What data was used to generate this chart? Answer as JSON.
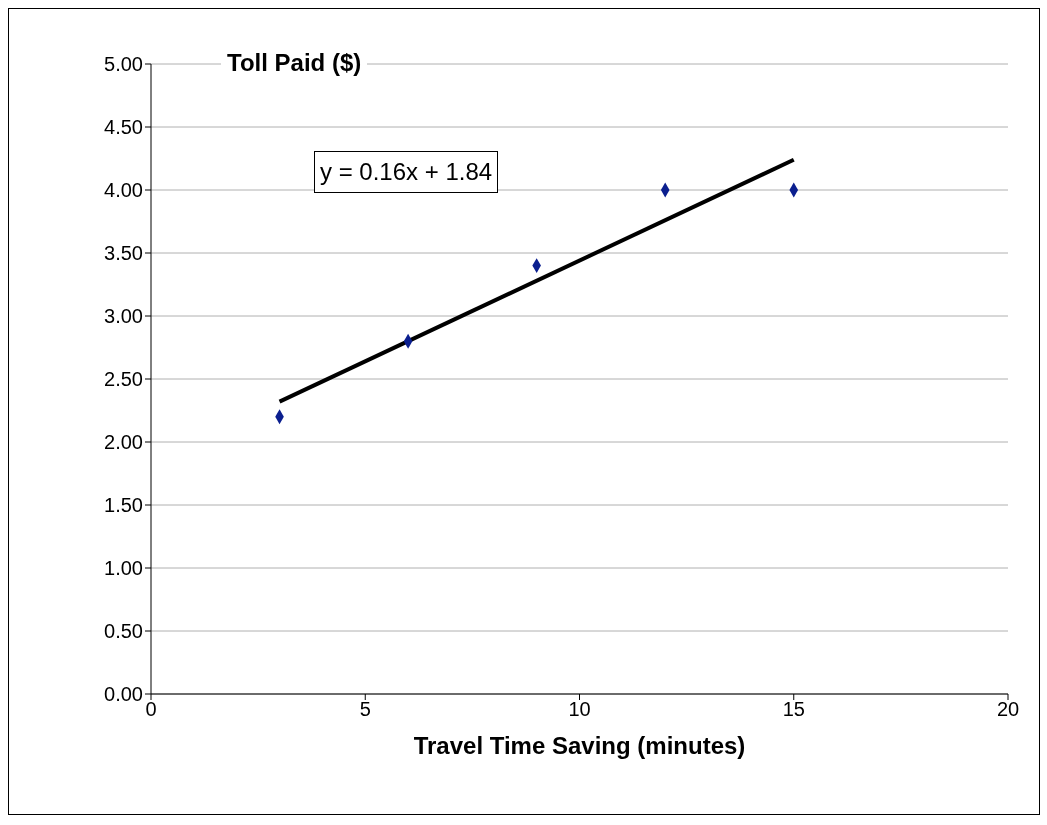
{
  "chart_data": {
    "type": "scatter",
    "ylabel": "Toll Paid ($)",
    "xlabel": "Travel Time Saving (minutes)",
    "annotations": [
      "y = 0.16x + 1.84"
    ],
    "series": [
      {
        "marker": "diamond",
        "color": "#0b1f8f",
        "x": [
          3,
          6,
          9,
          12,
          15
        ],
        "values": [
          2.2,
          2.8,
          3.4,
          4.0,
          4.0
        ]
      },
      {
        "type": "line",
        "color": "#000000",
        "x": [
          3,
          15
        ],
        "values": [
          2.32,
          4.24
        ]
      }
    ],
    "xlim": [
      0,
      20
    ],
    "xticks": [
      0,
      5,
      10,
      15,
      20
    ],
    "ylim": [
      0,
      5
    ],
    "yticks": [
      {
        "value": 0,
        "label": "0.00"
      },
      {
        "value": 0.5,
        "label": "0.50"
      },
      {
        "value": 1,
        "label": "1.00"
      },
      {
        "value": 1.5,
        "label": "1.50"
      },
      {
        "value": 2,
        "label": "2.00"
      },
      {
        "value": 2.5,
        "label": "2.50"
      },
      {
        "value": 3,
        "label": "3.00"
      },
      {
        "value": 3.5,
        "label": "3.50"
      },
      {
        "value": 4,
        "label": "4.00"
      },
      {
        "value": 4.5,
        "label": "4.50"
      },
      {
        "value": 5,
        "label": "5.00"
      }
    ],
    "grid": "y",
    "line_style": "solid"
  }
}
